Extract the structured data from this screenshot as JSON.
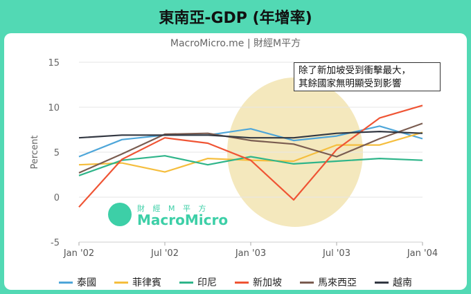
{
  "title": "東南亞-GDP (年增率)",
  "subtitle": "MacroMicro.me | 財經M平方",
  "annotation": [
    "除了新加坡受到衝擊最大，",
    "其餘國家無明顯受到影響"
  ],
  "watermark": {
    "small": "財 經 M 平 方",
    "big": "MacroMicro"
  },
  "colors": {
    "background": "#52d9b4",
    "highlight": "#f3e6b6",
    "grid": "#e6e6e6"
  },
  "chart_data": {
    "type": "line",
    "ylabel": "Percent",
    "ylim": [
      -5,
      15
    ],
    "yticks": [
      -5,
      0,
      5,
      10,
      15
    ],
    "x": [
      "2002-01",
      "2002-04",
      "2002-07",
      "2002-10",
      "2003-01",
      "2003-04",
      "2003-07",
      "2003-10",
      "2004-01"
    ],
    "xtick_labels": [
      {
        "x": "2002-01",
        "label": "Jan '02"
      },
      {
        "x": "2002-07",
        "label": "Jul '02"
      },
      {
        "x": "2003-01",
        "label": "Jan '03"
      },
      {
        "x": "2003-07",
        "label": "Jul '03"
      },
      {
        "x": "2004-01",
        "label": "Jan '04"
      }
    ],
    "series": [
      {
        "name": "泰國",
        "color": "#4ea6d9",
        "values": [
          4.5,
          6.4,
          6.9,
          6.9,
          7.6,
          6.3,
          6.8,
          7.9,
          6.5
        ]
      },
      {
        "name": "菲律賓",
        "color": "#f5be3e",
        "values": [
          3.6,
          3.8,
          2.8,
          4.3,
          4.1,
          4.0,
          5.8,
          5.8,
          7.2
        ]
      },
      {
        "name": "印尼",
        "color": "#2fb58a",
        "values": [
          2.4,
          4.1,
          4.6,
          3.6,
          4.5,
          3.7,
          4.0,
          4.3,
          4.1
        ]
      },
      {
        "name": "新加坡",
        "color": "#ef5434",
        "values": [
          -1.1,
          4.2,
          6.6,
          6.0,
          4.1,
          -0.3,
          5.3,
          8.8,
          10.2
        ]
      },
      {
        "name": "馬來西亞",
        "color": "#7a5c50",
        "values": [
          2.7,
          4.8,
          7.0,
          7.1,
          6.3,
          5.9,
          4.5,
          6.5,
          8.2
        ]
      },
      {
        "name": "越南",
        "color": "#333842",
        "values": [
          6.6,
          6.9,
          6.9,
          6.9,
          6.6,
          6.6,
          7.1,
          7.3,
          7.1
        ]
      }
    ]
  }
}
